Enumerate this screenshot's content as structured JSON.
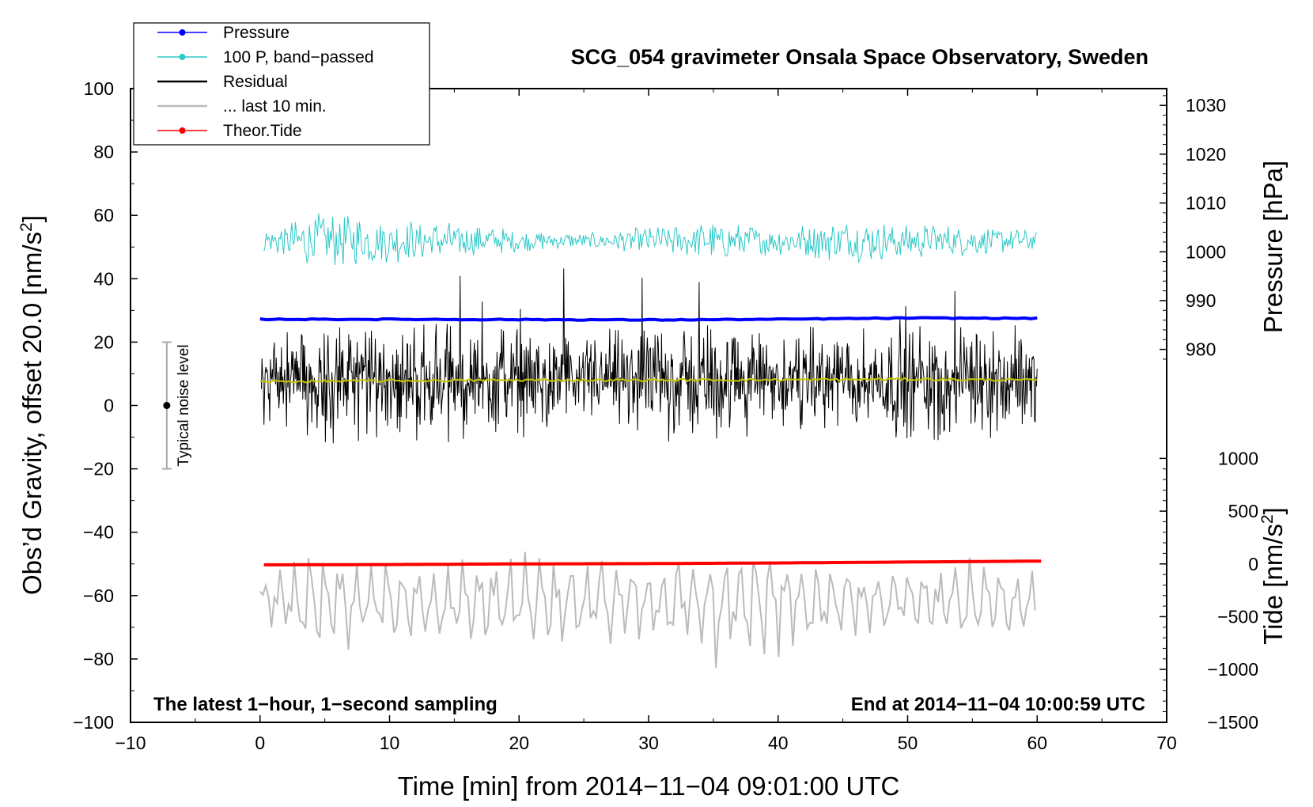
{
  "chart_data": {
    "type": "line",
    "title": "SCG_054 gravimeter Onsala Space Observatory, Sweden",
    "xlabel": "Time [min] from 2014−11−04 09:01:00 UTC",
    "ylabel_main": "Obs’d Gravity, offset 20.0 [nm/s",
    "ylabel_main_sup": "2",
    "ylabel_main_end": "]",
    "ylabel_pressure": "Pressure [hPa]",
    "ylabel_tide": "Tide [nm/s",
    "ylabel_tide_sup": "2",
    "ylabel_tide_end": "]",
    "xlim": [
      -10,
      70
    ],
    "ylim": [
      -100,
      100
    ],
    "x_ticks": [
      -10,
      0,
      10,
      20,
      30,
      40,
      50,
      60,
      70
    ],
    "x_tick_labels": [
      "−10",
      "0",
      "10",
      "20",
      "30",
      "40",
      "50",
      "60",
      "70"
    ],
    "y_ticks": [
      -100,
      -80,
      -60,
      -40,
      -20,
      0,
      20,
      40,
      60,
      80,
      100
    ],
    "y_tick_labels": [
      "−100",
      "−80",
      "−60",
      "−40",
      "−20",
      "0",
      "20",
      "40",
      "60",
      "80",
      "100"
    ],
    "pressure_axis": {
      "ticks_hpa": [
        980,
        990,
        1000,
        1010,
        1020,
        1030
      ],
      "tick_labels": [
        "980",
        "990",
        "1000",
        "1010",
        "1020",
        "1030"
      ],
      "main_value_at_980": 17.7,
      "main_units_per_hpa": 1.54
    },
    "tide_axis": {
      "ticks": [
        -1500,
        -1000,
        -500,
        0,
        500,
        1000
      ],
      "tick_labels": [
        "−1500",
        "−1000",
        "−500",
        "0",
        "500",
        "1000"
      ],
      "main_value_at_0": -50.0,
      "main_units_per_1000": 33.3
    },
    "noise_bar": {
      "label": "Typical noise level",
      "x": -7.2,
      "center": 0,
      "low": -20,
      "high": 20
    },
    "notes": {
      "left": "The latest 1−hour, 1−second sampling",
      "right": "End at 2014−11−04 10:00:59 UTC"
    },
    "legend": [
      {
        "label": "Pressure",
        "color": "#0000ff",
        "marker": true
      },
      {
        "label": "100 P, band−passed",
        "color": "#2ec8c8",
        "marker": true
      },
      {
        "label": "Residual",
        "color": "#000000",
        "marker": false
      },
      {
        "label": "... last 10 min.",
        "color": "#bbbbbb",
        "marker": false
      },
      {
        "label": "Theor.Tide",
        "color": "#ff0000",
        "marker": true
      }
    ],
    "series": [
      {
        "name": "Pressure",
        "color": "#0000ff",
        "x": [
          0,
          10,
          20,
          30,
          40,
          50,
          60
        ],
        "values": [
          27.2,
          27.2,
          27.1,
          27.0,
          27.2,
          27.6,
          27.5
        ]
      },
      {
        "name": "100 P, band−passed",
        "color": "#2ec8c8",
        "baseline": 52,
        "x": [
          0,
          5,
          10,
          15,
          20,
          25,
          30,
          35,
          40,
          45,
          50,
          55,
          60
        ],
        "amplitude": [
          3,
          8,
          6,
          5,
          3,
          2,
          4,
          5,
          4,
          6,
          5,
          4,
          3
        ]
      },
      {
        "name": "Residual",
        "color": "#000000",
        "baseline": 8,
        "x": [
          0,
          5,
          10,
          15,
          20,
          25,
          30,
          35,
          40,
          45,
          50,
          55,
          60
        ],
        "amplitude": [
          12,
          16,
          14,
          15,
          13,
          12,
          14,
          16,
          12,
          13,
          15,
          16,
          12
        ]
      },
      {
        "name": "Residual smoothed",
        "color": "#c8c800",
        "x": [
          0,
          10,
          20,
          30,
          40,
          50,
          60
        ],
        "values": [
          7.5,
          7.8,
          8.0,
          8.0,
          8.1,
          8.3,
          8.0
        ]
      },
      {
        "name": "... last 10 min.",
        "color": "#bbbbbb",
        "baseline": -62,
        "x": [
          0,
          5,
          10,
          15,
          20,
          25,
          30,
          35,
          40,
          45,
          50,
          55,
          60
        ],
        "amplitude": [
          8,
          16,
          13,
          12,
          14,
          15,
          10,
          18,
          16,
          11,
          10,
          12,
          8
        ]
      },
      {
        "name": "Theor.Tide",
        "color": "#ff0000",
        "x": [
          0,
          10,
          20,
          30,
          40,
          50,
          60.5
        ],
        "values": [
          -50.3,
          -50.2,
          -50.0,
          -49.9,
          -49.7,
          -49.4,
          -49.1
        ]
      }
    ]
  }
}
